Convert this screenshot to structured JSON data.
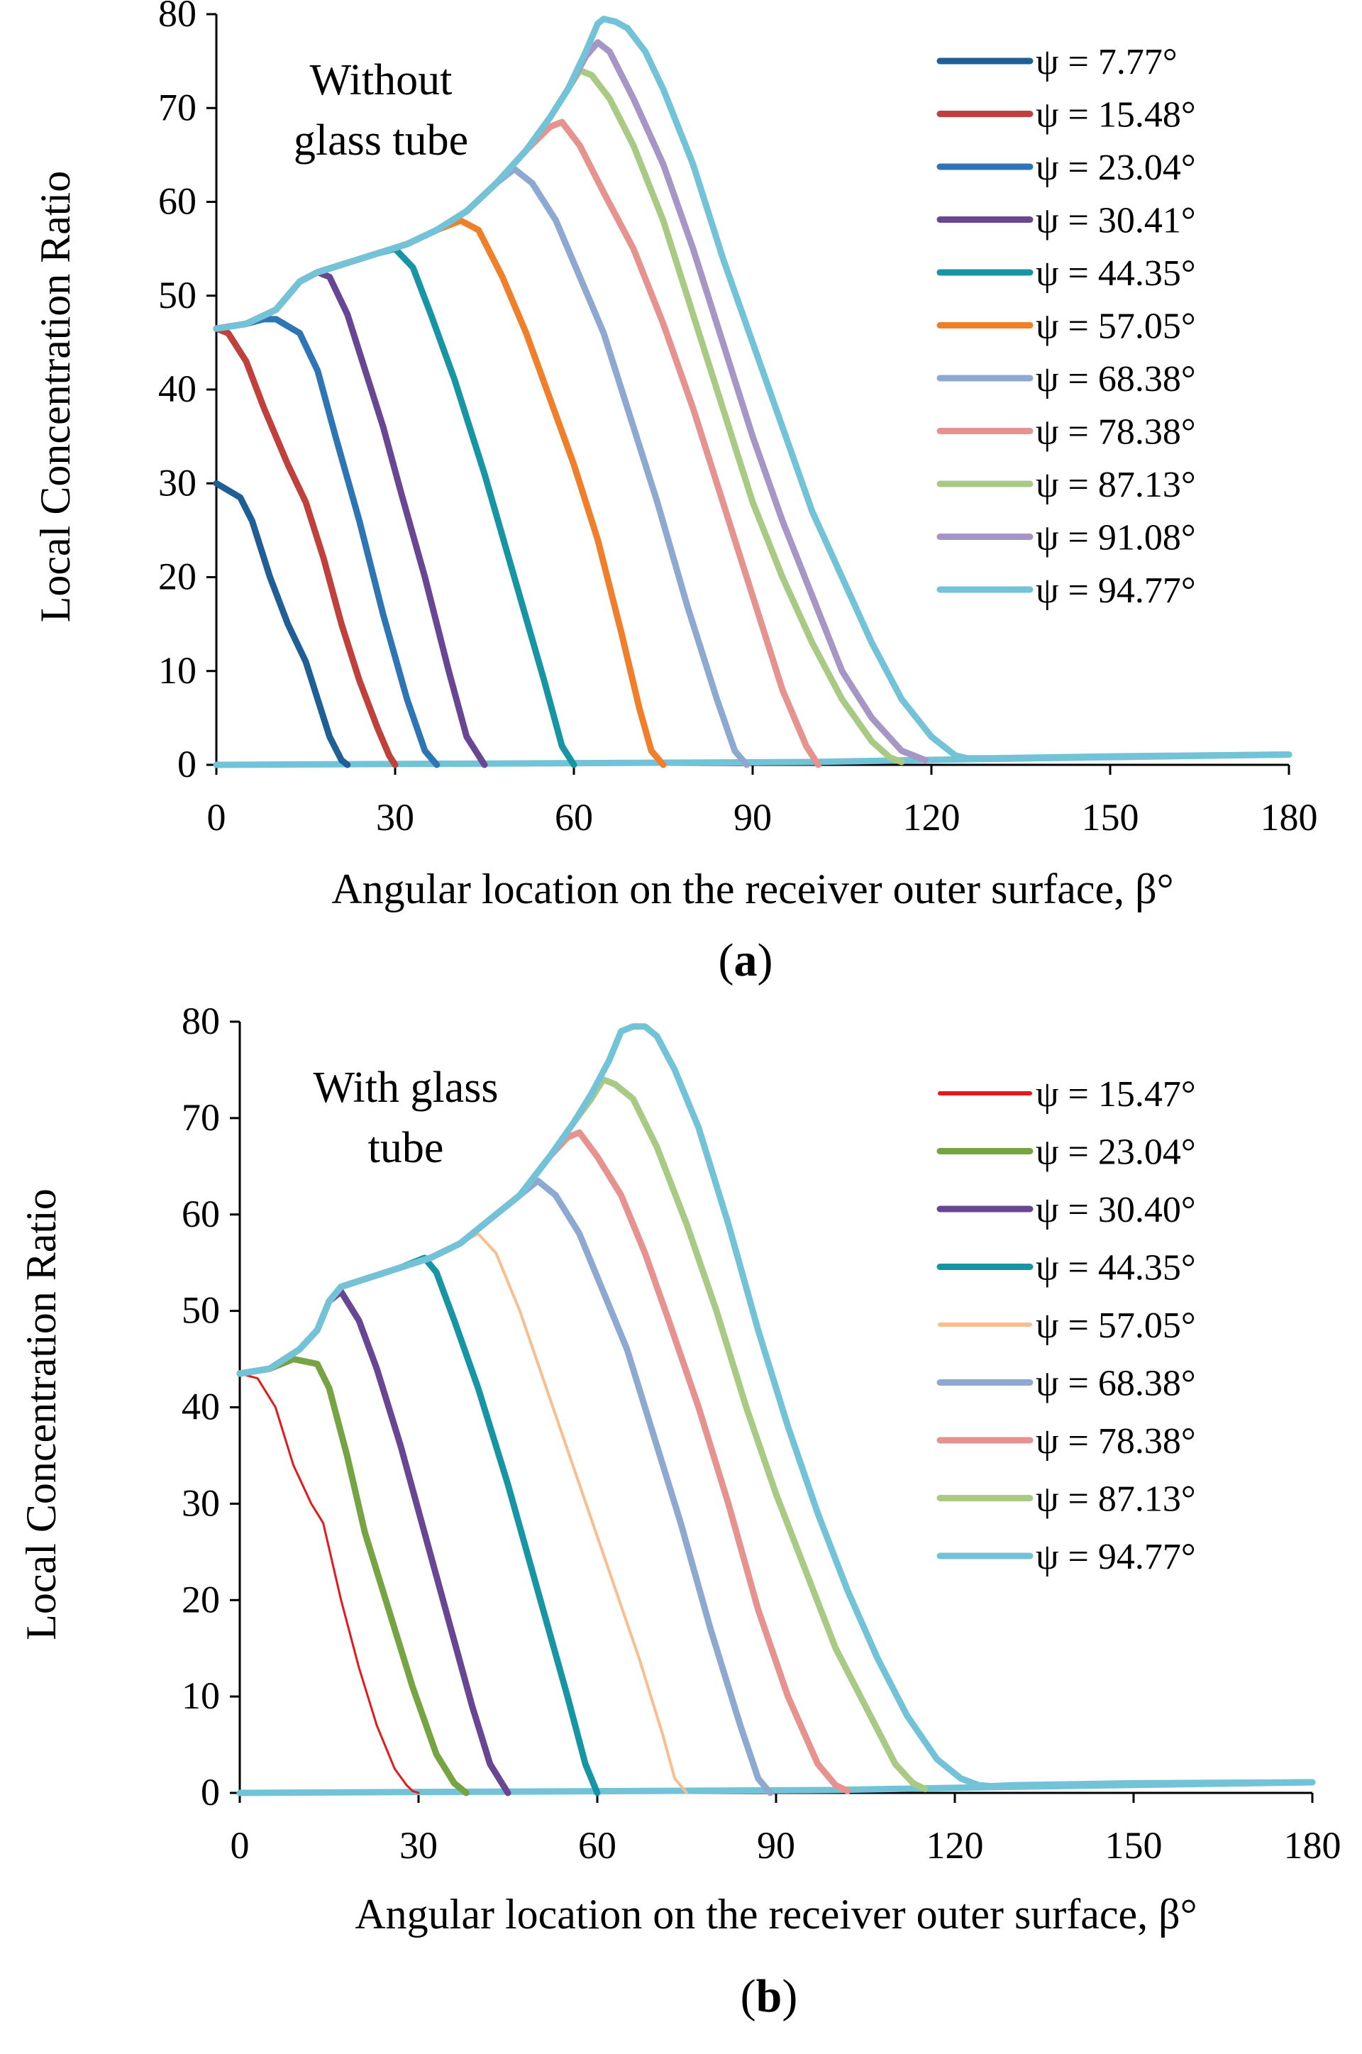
{
  "chart_data": [
    {
      "type": "line",
      "panel_label": "a",
      "annotation": [
        "Without",
        "glass tube"
      ],
      "xlabel": "Angular location on the receiver outer surface, β°",
      "ylabel": "Local Concentration Ratio",
      "xlim": [
        0,
        180
      ],
      "ylim": [
        0,
        80
      ],
      "xticks": [
        0,
        30,
        60,
        90,
        120,
        150,
        180
      ],
      "yticks": [
        0,
        10,
        20,
        30,
        40,
        50,
        60,
        70,
        80
      ],
      "legend_position": "top-right",
      "baseline": {
        "x": [
          0,
          100,
          126,
          180
        ],
        "y": [
          0,
          0.3,
          0.6,
          1.1
        ]
      },
      "series": [
        {
          "name": "ψ = 7.77°",
          "color": "#1F5F95",
          "x": [
            0,
            4,
            6,
            9,
            12,
            15,
            17,
            19,
            21,
            22
          ],
          "y": [
            30,
            28.5,
            26,
            20,
            15,
            11,
            7,
            3,
            0.5,
            0
          ]
        },
        {
          "name": "ψ = 15.48°",
          "color": "#C0403B",
          "x": [
            0,
            2,
            5,
            8,
            12,
            15,
            18,
            21,
            24,
            27,
            29,
            30
          ],
          "y": [
            46.5,
            46,
            43,
            38,
            32,
            28,
            22,
            15,
            9,
            4,
            1,
            0
          ]
        },
        {
          "name": "ψ = 23.04°",
          "color": "#2E75B6",
          "x": [
            0,
            5,
            8,
            10,
            14,
            17,
            20,
            24,
            28,
            32,
            35,
            37
          ],
          "y": [
            46.5,
            47,
            47.5,
            47.5,
            46,
            42,
            35,
            26,
            16,
            7,
            1.5,
            0
          ]
        },
        {
          "name": "ψ = 30.41°",
          "color": "#684694",
          "x": [
            0,
            5,
            10,
            14,
            17,
            19,
            22,
            25,
            28,
            31,
            35,
            39,
            42,
            45
          ],
          "y": [
            46.5,
            47,
            48.5,
            51.5,
            52.5,
            52,
            48,
            42,
            36,
            29,
            20,
            10,
            3,
            0
          ]
        },
        {
          "name": "ψ = 44.35°",
          "color": "#1795A4",
          "x": [
            0,
            5,
            10,
            14,
            17,
            22,
            27,
            30,
            33,
            36,
            40,
            45,
            50,
            55,
            58,
            60
          ],
          "y": [
            46.5,
            47,
            48.5,
            51.5,
            52.5,
            53.5,
            54.5,
            55,
            53,
            48,
            41,
            31,
            20,
            9,
            2,
            0
          ]
        },
        {
          "name": "ψ = 57.05°",
          "color": "#F07F2B",
          "x": [
            0,
            5,
            10,
            14,
            17,
            22,
            27,
            32,
            37,
            41,
            44,
            48,
            52,
            56,
            60,
            64,
            68,
            71,
            73,
            75
          ],
          "y": [
            46.5,
            47,
            48.5,
            51.5,
            52.5,
            53.5,
            54.5,
            55.5,
            57,
            58,
            57,
            52,
            46,
            39,
            32,
            24,
            14,
            6,
            1.5,
            0
          ]
        },
        {
          "name": "ψ = 68.38°",
          "color": "#8EA9D1",
          "x": [
            0,
            5,
            10,
            14,
            17,
            22,
            27,
            32,
            37,
            42,
            47,
            50,
            53,
            57,
            61,
            65,
            69,
            74,
            79,
            84,
            87,
            89
          ],
          "y": [
            46.5,
            47,
            48.5,
            51.5,
            52.5,
            53.5,
            54.5,
            55.5,
            57,
            59,
            62,
            63.5,
            62,
            58,
            52,
            46,
            38,
            28,
            17,
            7,
            1.5,
            0
          ]
        },
        {
          "name": "ψ = 78.38°",
          "color": "#E6928E",
          "x": [
            0,
            5,
            10,
            14,
            17,
            22,
            27,
            32,
            37,
            42,
            47,
            52,
            56,
            58,
            61,
            65,
            70,
            75,
            80,
            85,
            90,
            95,
            99,
            101
          ],
          "y": [
            46.5,
            47,
            48.5,
            51.5,
            52.5,
            53.5,
            54.5,
            55.5,
            57,
            59,
            62,
            65.5,
            68,
            68.5,
            66,
            61,
            55,
            47,
            38,
            28,
            18,
            8,
            2,
            0
          ]
        },
        {
          "name": "ψ = 87.13°",
          "color": "#A9CA85",
          "x": [
            0,
            5,
            10,
            14,
            17,
            22,
            27,
            32,
            37,
            42,
            47,
            52,
            56,
            59,
            61,
            63,
            66,
            70,
            75,
            80,
            85,
            90,
            95,
            100,
            105,
            110,
            113,
            115
          ],
          "y": [
            46.5,
            47,
            48.5,
            51.5,
            52.5,
            53.5,
            54.5,
            55.5,
            57,
            59,
            62,
            65.5,
            69,
            72,
            74,
            73.5,
            71,
            66,
            58,
            48,
            38,
            28,
            20,
            13,
            7,
            2.5,
            0.8,
            0.3
          ]
        },
        {
          "name": "ψ = 91.08°",
          "color": "#A696C6",
          "x": [
            0,
            5,
            10,
            14,
            17,
            22,
            27,
            32,
            37,
            42,
            47,
            52,
            56,
            59,
            62,
            64,
            66,
            70,
            75,
            80,
            85,
            90,
            95,
            100,
            105,
            110,
            115,
            119
          ],
          "y": [
            46.5,
            47,
            48.5,
            51.5,
            52.5,
            53.5,
            54.5,
            55.5,
            57,
            59,
            62,
            65.5,
            69,
            72,
            75.5,
            77,
            76,
            71,
            64,
            55,
            45,
            35,
            26,
            18,
            10,
            5,
            1.5,
            0.5
          ]
        },
        {
          "name": "ψ = 94.77°",
          "color": "#72C2D8",
          "x": [
            0,
            5,
            10,
            14,
            17,
            22,
            27,
            32,
            37,
            42,
            47,
            52,
            56,
            59,
            62,
            64,
            65,
            67,
            69,
            72,
            75,
            80,
            85,
            90,
            95,
            100,
            105,
            110,
            115,
            120,
            124,
            126,
            130,
            150,
            180
          ],
          "y": [
            46.5,
            47,
            48.5,
            51.5,
            52.5,
            53.5,
            54.5,
            55.5,
            57,
            59,
            62,
            65.5,
            69,
            72,
            76,
            79,
            79.5,
            79.2,
            78.5,
            76,
            72,
            64,
            54,
            45,
            36,
            27,
            20,
            13,
            7,
            3,
            1,
            0.7,
            0.7,
            0.9,
            1.1
          ]
        }
      ]
    },
    {
      "type": "line",
      "panel_label": "b",
      "annotation": [
        "With glass",
        "tube"
      ],
      "xlabel": "Angular location on the receiver outer surface, β°",
      "ylabel": "Local Concentration Ratio",
      "xlim": [
        0,
        180
      ],
      "ylim": [
        0,
        80
      ],
      "xticks": [
        0,
        30,
        60,
        90,
        120,
        150,
        180
      ],
      "yticks": [
        0,
        10,
        20,
        30,
        40,
        50,
        60,
        70,
        80
      ],
      "legend_position": "top-right",
      "baseline": {
        "x": [
          0,
          100,
          126,
          180
        ],
        "y": [
          0,
          0.3,
          0.6,
          1.1
        ]
      },
      "series": [
        {
          "name": "ψ = 15.47°",
          "color": "#E31A1C",
          "width": 3,
          "x": [
            0,
            3,
            6,
            9,
            12,
            14,
            17,
            20,
            23,
            26,
            28,
            29,
            30
          ],
          "y": [
            43.5,
            43,
            40,
            34,
            30,
            28,
            20,
            13,
            7,
            2.5,
            0.8,
            0.2,
            0
          ]
        },
        {
          "name": "ψ = 23.04°",
          "color": "#77A442",
          "x": [
            0,
            5,
            9,
            13,
            15,
            18,
            21,
            25,
            29,
            33,
            36,
            38
          ],
          "y": [
            43.5,
            44,
            45,
            44.5,
            42,
            35,
            27,
            19,
            11,
            4,
            1,
            0
          ]
        },
        {
          "name": "ψ = 30.40°",
          "color": "#684694",
          "x": [
            0,
            5,
            10,
            13,
            15,
            17,
            20,
            23,
            27,
            31,
            35,
            39,
            42,
            45
          ],
          "y": [
            43.5,
            44,
            46,
            48,
            51,
            52,
            49,
            44,
            36,
            27,
            18,
            9,
            3,
            0
          ]
        },
        {
          "name": "ψ = 44.35°",
          "color": "#1795A4",
          "x": [
            0,
            5,
            10,
            13,
            15,
            17,
            22,
            27,
            31,
            33,
            36,
            40,
            45,
            50,
            55,
            58,
            60
          ],
          "y": [
            43.5,
            44,
            46,
            48,
            51,
            52.5,
            53.5,
            54.5,
            55.5,
            54,
            49,
            42,
            32,
            21,
            10,
            3,
            0
          ]
        },
        {
          "name": "ψ = 57.05°",
          "color": "#F9BE8E",
          "width": 4,
          "x": [
            0,
            5,
            10,
            13,
            15,
            17,
            22,
            27,
            32,
            37,
            40,
            43,
            47,
            52,
            57,
            62,
            67,
            71,
            73,
            75
          ],
          "y": [
            43.5,
            44,
            46,
            48,
            51,
            52.5,
            53.5,
            54.5,
            55.5,
            57,
            58,
            56,
            50,
            41,
            32,
            23,
            14,
            6,
            1.5,
            0
          ]
        },
        {
          "name": "ψ = 68.38°",
          "color": "#8EA9D1",
          "x": [
            0,
            5,
            10,
            13,
            15,
            17,
            22,
            27,
            32,
            37,
            42,
            47,
            50,
            53,
            57,
            61,
            65,
            69,
            74,
            79,
            84,
            87,
            89
          ],
          "y": [
            43.5,
            44,
            46,
            48,
            51,
            52.5,
            53.5,
            54.5,
            55.5,
            57,
            59.5,
            62,
            63.5,
            62,
            58,
            52,
            46,
            38,
            28,
            17,
            7,
            1.5,
            0
          ]
        },
        {
          "name": "ψ = 78.38°",
          "color": "#E6928E",
          "x": [
            0,
            5,
            10,
            13,
            15,
            17,
            22,
            27,
            32,
            37,
            42,
            47,
            52,
            55,
            57,
            60,
            64,
            68,
            72,
            77,
            82,
            87,
            92,
            97,
            100,
            102
          ],
          "y": [
            43.5,
            44,
            46,
            48,
            51,
            52.5,
            53.5,
            54.5,
            55.5,
            57,
            59.5,
            62,
            66,
            68,
            68.5,
            66,
            62,
            56,
            49,
            40,
            30,
            19,
            10,
            3,
            0.8,
            0.2
          ]
        },
        {
          "name": "ψ = 87.13°",
          "color": "#A9CA85",
          "x": [
            0,
            5,
            10,
            13,
            15,
            17,
            22,
            27,
            32,
            37,
            42,
            47,
            52,
            56,
            59,
            61,
            63,
            66,
            70,
            75,
            80,
            85,
            90,
            95,
            100,
            105,
            110,
            113,
            115
          ],
          "y": [
            43.5,
            44,
            46,
            48,
            51,
            52.5,
            53.5,
            54.5,
            55.5,
            57,
            59.5,
            62,
            66,
            69.5,
            72,
            74,
            73.5,
            72,
            67,
            59,
            50,
            40,
            31,
            23,
            15,
            9,
            3,
            1,
            0.4
          ]
        },
        {
          "name": "ψ = 94.77°",
          "color": "#72C2D8",
          "x": [
            0,
            5,
            10,
            13,
            15,
            17,
            22,
            27,
            32,
            37,
            42,
            47,
            52,
            56,
            59,
            62,
            64,
            66,
            68,
            70,
            73,
            77,
            82,
            87,
            92,
            97,
            102,
            107,
            112,
            117,
            121,
            124,
            126,
            130,
            150,
            180
          ],
          "y": [
            43.5,
            44,
            46,
            48,
            51,
            52.5,
            53.5,
            54.5,
            55.5,
            57,
            59.5,
            62,
            66,
            69.5,
            72.5,
            76,
            79,
            79.5,
            79.5,
            78.5,
            75,
            69,
            59,
            48,
            38,
            29,
            21,
            14,
            8,
            3.5,
            1.5,
            0.8,
            0.7,
            0.8,
            1,
            1.1
          ]
        }
      ]
    }
  ]
}
